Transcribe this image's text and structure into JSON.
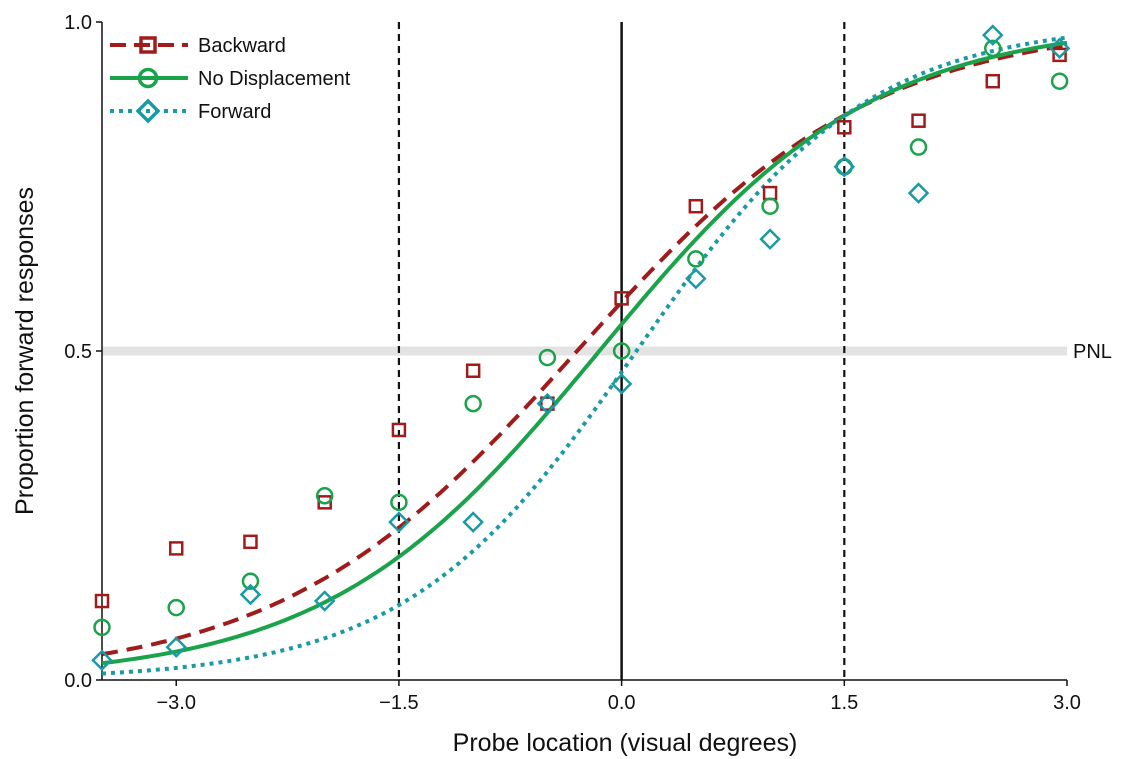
{
  "chart_data": {
    "type": "scatter",
    "xlabel": "Probe location (visual degrees)",
    "ylabel": "Proportion forward responses",
    "xlim": [
      -3.5,
      3.0
    ],
    "ylim": [
      0.0,
      1.0
    ],
    "x_ticks": [
      -3.0,
      -1.5,
      0.0,
      1.5,
      3.0
    ],
    "x_tick_labels": [
      "−3.0",
      "−1.5",
      "0.0",
      "1.5",
      "3.0"
    ],
    "y_ticks": [
      0.0,
      0.5,
      1.0
    ],
    "y_tick_labels": [
      "0.0",
      "0.5",
      "1.0"
    ],
    "vertical_lines": [
      {
        "x": -1.5,
        "style": "dashed"
      },
      {
        "x": 0.0,
        "style": "solid"
      },
      {
        "x": 1.5,
        "style": "dashed"
      }
    ],
    "reference_line": {
      "y": 0.5,
      "label": "PNL",
      "color": "#e3e3e3"
    },
    "grid": false,
    "legend_position": "top-left",
    "series": [
      {
        "name": "Backward",
        "color": "#a01c1c",
        "marker": "square",
        "fit_style": "dashed",
        "x": [
          -3.5,
          -3.0,
          -2.5,
          -2.0,
          -1.5,
          -1.0,
          -0.5,
          0.0,
          0.5,
          1.0,
          1.5,
          2.0,
          2.5,
          2.95
        ],
        "y": [
          0.12,
          0.2,
          0.21,
          0.27,
          0.38,
          0.47,
          0.42,
          0.58,
          0.72,
          0.74,
          0.84,
          0.85,
          0.91,
          0.95
        ],
        "fit": {
          "x0": -0.3,
          "scale": 1.0
        }
      },
      {
        "name": "No Displacement",
        "color": "#1aa34a",
        "marker": "circle",
        "fit_style": "solid",
        "x": [
          -3.5,
          -3.0,
          -2.5,
          -2.0,
          -1.5,
          -1.0,
          -0.5,
          0.0,
          0.5,
          1.0,
          1.5,
          2.0,
          2.5,
          2.95
        ],
        "y": [
          0.08,
          0.11,
          0.15,
          0.28,
          0.27,
          0.42,
          0.49,
          0.5,
          0.64,
          0.72,
          0.78,
          0.81,
          0.96,
          0.91
        ],
        "fit": {
          "x0": -0.15,
          "scale": 0.92
        }
      },
      {
        "name": "Forward",
        "color": "#1a9aa3",
        "marker": "diamond",
        "fit_style": "dotted",
        "x": [
          -3.5,
          -3.0,
          -2.5,
          -2.0,
          -1.5,
          -1.0,
          -0.5,
          0.0,
          0.5,
          1.0,
          1.5,
          2.0,
          2.5,
          2.95
        ],
        "y": [
          0.03,
          0.05,
          0.13,
          0.12,
          0.24,
          0.24,
          0.42,
          0.45,
          0.61,
          0.67,
          0.78,
          0.74,
          0.98,
          0.96
        ],
        "fit": {
          "x0": 0.1,
          "scale": 0.78
        }
      }
    ]
  }
}
